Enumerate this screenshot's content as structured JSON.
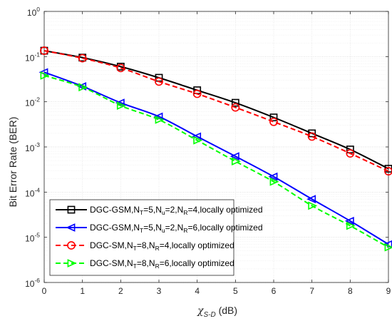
{
  "chart_data": {
    "type": "line",
    "xlabel_symbol": "χ",
    "xlabel_sub": "S-D",
    "xlabel_unit": " (dB)",
    "ylabel": "Bit Error Rate (BER)",
    "yscale": "log",
    "xlim": [
      0,
      9
    ],
    "ylim": [
      1e-06,
      1
    ],
    "grid": true,
    "minor_grid": true,
    "legend_position": "bottom-left",
    "x_ticks": [
      "0",
      "1",
      "2",
      "3",
      "4",
      "5",
      "6",
      "7",
      "8",
      "9"
    ],
    "y_tick_exponents": [
      "-6",
      "-5",
      "-4",
      "-3",
      "-2",
      "-1",
      "0"
    ],
    "y_tick_base": "10",
    "x": [
      0,
      1,
      2,
      3,
      4,
      5,
      6,
      7,
      8,
      9
    ],
    "series": [
      {
        "legend": [
          {
            "t": "DGC-GSM,N"
          },
          {
            "t": "T",
            "sub": true
          },
          {
            "t": "=5,N"
          },
          {
            "t": "u",
            "sub": true
          },
          {
            "t": "=2,N"
          },
          {
            "t": "R",
            "sub": true
          },
          {
            "t": "=4,locally optimized"
          }
        ],
        "color": "#000000",
        "dash": "solid",
        "marker": "square",
        "values": [
          0.135,
          0.095,
          0.06,
          0.034,
          0.018,
          0.0095,
          0.0045,
          0.002,
          0.00088,
          0.00033
        ]
      },
      {
        "legend": [
          {
            "t": "DGC-GSM,N"
          },
          {
            "t": "T",
            "sub": true
          },
          {
            "t": "=5,N"
          },
          {
            "t": "u",
            "sub": true
          },
          {
            "t": "=2,N"
          },
          {
            "t": "R",
            "sub": true
          },
          {
            "t": "=6,locally optimized"
          }
        ],
        "color": "#0000ff",
        "dash": "solid",
        "marker": "triangle-left",
        "values": [
          0.045,
          0.022,
          0.0095,
          0.0047,
          0.0017,
          0.00062,
          0.00022,
          7e-05,
          2.3e-05,
          7e-06
        ]
      },
      {
        "legend": [
          {
            "t": "DGC-SM,N"
          },
          {
            "t": "T",
            "sub": true
          },
          {
            "t": "=8,N"
          },
          {
            "t": "R",
            "sub": true
          },
          {
            "t": "=4,locally optimized"
          }
        ],
        "color": "#ff0000",
        "dash": "dashed",
        "marker": "circle",
        "values": [
          0.135,
          0.092,
          0.056,
          0.028,
          0.015,
          0.0075,
          0.0036,
          0.0017,
          0.00072,
          0.00029
        ]
      },
      {
        "legend": [
          {
            "t": "DGC-SM,N"
          },
          {
            "t": "T",
            "sub": true
          },
          {
            "t": "=8,N"
          },
          {
            "t": "R",
            "sub": true
          },
          {
            "t": "=6,locally optimized"
          }
        ],
        "color": "#00ff00",
        "dash": "dashed",
        "marker": "triangle-right",
        "values": [
          0.038,
          0.021,
          0.0082,
          0.004,
          0.0014,
          0.00048,
          0.00017,
          5e-05,
          1.8e-05,
          6e-06
        ]
      }
    ]
  }
}
